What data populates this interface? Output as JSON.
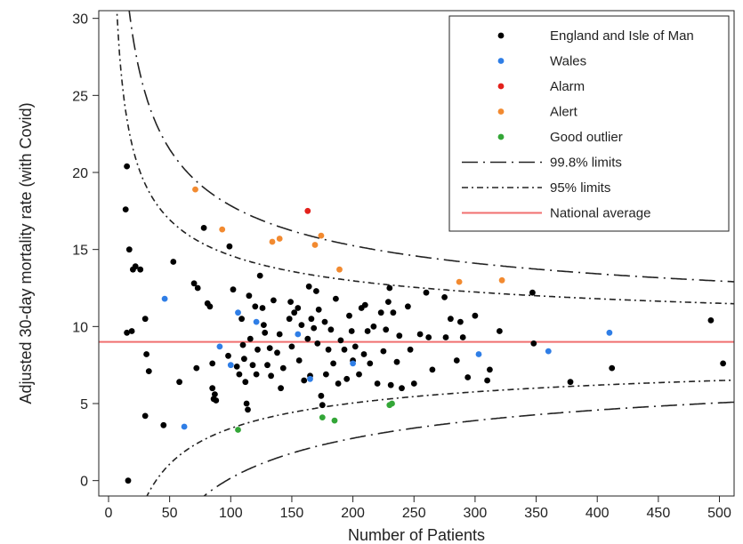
{
  "chart_data": {
    "type": "scatter",
    "xlabel": "Number of Patients",
    "ylabel": "Adjusted 30-day mortality rate (with Covid)",
    "xlim": [
      -8,
      512
    ],
    "ylim": [
      -1,
      30.5
    ],
    "xticks": [
      0,
      50,
      100,
      150,
      200,
      250,
      300,
      350,
      400,
      450,
      500
    ],
    "yticks": [
      0,
      5,
      10,
      15,
      20,
      25,
      30
    ],
    "grid": false,
    "legend_position": "top-right",
    "national_average": 9.0,
    "series": [
      {
        "name": "England and Isle of Man",
        "color": "#000000",
        "points": [
          [
            15,
            20.4
          ],
          [
            14,
            17.6
          ],
          [
            17,
            15.0
          ],
          [
            20,
            13.7
          ],
          [
            22,
            13.9
          ],
          [
            26,
            13.7
          ],
          [
            15,
            9.6
          ],
          [
            19,
            9.7
          ],
          [
            30,
            10.5
          ],
          [
            31,
            8.2
          ],
          [
            33,
            7.1
          ],
          [
            30,
            4.2
          ],
          [
            45,
            3.6
          ],
          [
            16,
            0.0
          ],
          [
            53,
            14.2
          ],
          [
            58,
            6.4
          ],
          [
            70,
            12.8
          ],
          [
            73,
            12.5
          ],
          [
            72,
            7.3
          ],
          [
            78,
            16.4
          ],
          [
            81,
            11.5
          ],
          [
            83,
            11.3
          ],
          [
            85,
            7.6
          ],
          [
            85,
            6.0
          ],
          [
            86,
            5.3
          ],
          [
            88,
            5.2
          ],
          [
            87,
            5.6
          ],
          [
            99,
            15.2
          ],
          [
            98,
            8.1
          ],
          [
            102,
            12.4
          ],
          [
            105,
            7.4
          ],
          [
            107,
            6.9
          ],
          [
            109,
            10.5
          ],
          [
            110,
            8.8
          ],
          [
            111,
            7.9
          ],
          [
            112,
            6.4
          ],
          [
            113,
            5.0
          ],
          [
            114,
            4.6
          ],
          [
            115,
            12.0
          ],
          [
            116,
            9.2
          ],
          [
            118,
            7.5
          ],
          [
            120,
            11.3
          ],
          [
            121,
            6.9
          ],
          [
            122,
            8.5
          ],
          [
            124,
            13.3
          ],
          [
            126,
            11.2
          ],
          [
            127,
            10.1
          ],
          [
            128,
            9.6
          ],
          [
            130,
            7.5
          ],
          [
            132,
            8.6
          ],
          [
            133,
            6.8
          ],
          [
            135,
            11.7
          ],
          [
            138,
            8.3
          ],
          [
            140,
            9.5
          ],
          [
            141,
            6.0
          ],
          [
            143,
            7.3
          ],
          [
            148,
            10.5
          ],
          [
            149,
            11.6
          ],
          [
            150,
            8.7
          ],
          [
            152,
            10.9
          ],
          [
            155,
            11.2
          ],
          [
            156,
            7.8
          ],
          [
            158,
            10.1
          ],
          [
            160,
            6.5
          ],
          [
            163,
            9.2
          ],
          [
            164,
            12.6
          ],
          [
            165,
            6.8
          ],
          [
            166,
            10.5
          ],
          [
            168,
            9.9
          ],
          [
            170,
            12.3
          ],
          [
            171,
            8.9
          ],
          [
            172,
            11.1
          ],
          [
            174,
            5.5
          ],
          [
            175,
            4.9
          ],
          [
            177,
            10.3
          ],
          [
            178,
            6.9
          ],
          [
            180,
            8.5
          ],
          [
            182,
            9.8
          ],
          [
            184,
            7.6
          ],
          [
            186,
            11.8
          ],
          [
            188,
            6.3
          ],
          [
            190,
            9.1
          ],
          [
            193,
            8.5
          ],
          [
            195,
            6.6
          ],
          [
            197,
            10.7
          ],
          [
            199,
            9.7
          ],
          [
            200,
            7.8
          ],
          [
            202,
            8.7
          ],
          [
            205,
            6.9
          ],
          [
            207,
            11.2
          ],
          [
            209,
            8.2
          ],
          [
            210,
            11.4
          ],
          [
            212,
            9.7
          ],
          [
            214,
            7.6
          ],
          [
            217,
            10.0
          ],
          [
            220,
            6.3
          ],
          [
            223,
            10.9
          ],
          [
            225,
            8.4
          ],
          [
            227,
            9.8
          ],
          [
            229,
            11.6
          ],
          [
            230,
            12.5
          ],
          [
            231,
            6.2
          ],
          [
            233,
            10.9
          ],
          [
            236,
            7.7
          ],
          [
            238,
            9.4
          ],
          [
            240,
            6.0
          ],
          [
            245,
            11.3
          ],
          [
            247,
            8.5
          ],
          [
            250,
            6.3
          ],
          [
            255,
            9.5
          ],
          [
            260,
            12.2
          ],
          [
            262,
            9.3
          ],
          [
            265,
            7.2
          ],
          [
            275,
            11.9
          ],
          [
            276,
            9.3
          ],
          [
            280,
            10.5
          ],
          [
            285,
            7.8
          ],
          [
            288,
            10.3
          ],
          [
            290,
            9.3
          ],
          [
            294,
            6.7
          ],
          [
            300,
            10.7
          ],
          [
            310,
            6.5
          ],
          [
            312,
            7.2
          ],
          [
            320,
            9.7
          ],
          [
            347,
            12.2
          ],
          [
            348,
            8.9
          ],
          [
            378,
            6.4
          ],
          [
            412,
            7.3
          ],
          [
            493,
            10.4
          ],
          [
            503,
            7.6
          ]
        ]
      },
      {
        "name": "Wales",
        "color": "#2f7ee6",
        "points": [
          [
            46,
            11.8
          ],
          [
            62,
            3.5
          ],
          [
            91,
            8.7
          ],
          [
            100,
            7.5
          ],
          [
            106,
            10.9
          ],
          [
            121,
            10.3
          ],
          [
            155,
            9.5
          ],
          [
            165,
            6.6
          ],
          [
            200,
            7.6
          ],
          [
            303,
            8.2
          ],
          [
            360,
            8.4
          ],
          [
            410,
            9.6
          ]
        ]
      },
      {
        "name": "Alarm",
        "color": "#e3211c",
        "points": [
          [
            163,
            17.5
          ]
        ]
      },
      {
        "name": "Alert",
        "color": "#f28a30",
        "points": [
          [
            71,
            18.9
          ],
          [
            93,
            16.3
          ],
          [
            134,
            15.5
          ],
          [
            140,
            15.7
          ],
          [
            169,
            15.3
          ],
          [
            174,
            15.9
          ],
          [
            189,
            13.7
          ],
          [
            287,
            12.9
          ],
          [
            322,
            13.0
          ]
        ]
      },
      {
        "name": "Good outlier",
        "color": "#33a637",
        "points": [
          [
            106,
            3.3
          ],
          [
            175,
            4.1
          ],
          [
            185,
            3.9
          ],
          [
            230,
            4.9
          ],
          [
            232,
            5.0
          ]
        ]
      }
    ],
    "limits": [
      {
        "name": "99.8% limits",
        "dash": "long"
      },
      {
        "name": "95% limits",
        "dash": "short"
      }
    ],
    "average_line": {
      "name": "National average",
      "color": "#f06f6f"
    }
  }
}
